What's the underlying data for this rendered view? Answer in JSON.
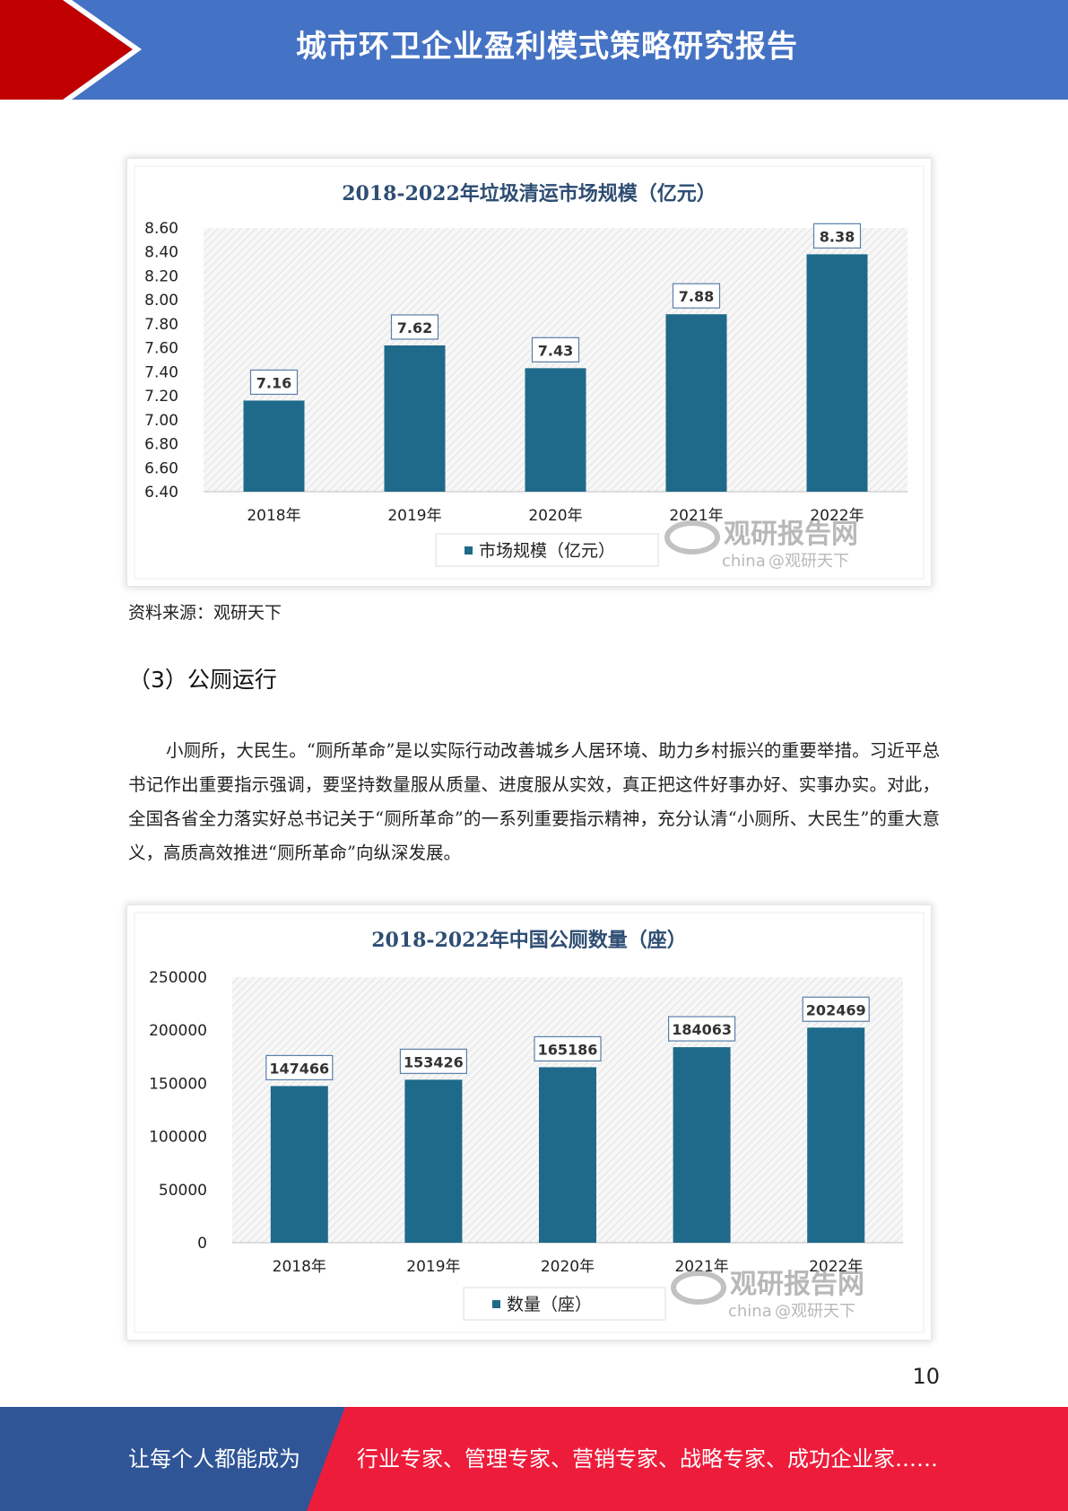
{
  "header": {
    "title": "城市环卫企业盈利模式策略研究报告"
  },
  "chart_data": [
    {
      "type": "bar",
      "title": "2018-2022年垃圾清运市场规模（亿元）",
      "categories": [
        "2018年",
        "2019年",
        "2020年",
        "2021年",
        "2022年"
      ],
      "values": [
        7.16,
        7.62,
        7.43,
        7.88,
        8.38
      ],
      "data_labels": [
        "7.16",
        "7.62",
        "7.43",
        "7.88",
        "8.38"
      ],
      "ylim": [
        6.4,
        8.6
      ],
      "yticks": [
        "6.40",
        "6.60",
        "6.80",
        "7.00",
        "7.20",
        "7.40",
        "7.60",
        "7.80",
        "8.00",
        "8.20",
        "8.40",
        "8.60"
      ],
      "legend": "市场规模（亿元）",
      "legend_position": "bottom",
      "color": "#1f6a8a",
      "watermark": {
        "brand": "观研报告网",
        "sub": "china",
        "handle": "@观研天下"
      }
    },
    {
      "type": "bar",
      "title": "2018-2022年中国公厕数量（座）",
      "categories": [
        "2018年",
        "2019年",
        "2020年",
        "2021年",
        "2022年"
      ],
      "values": [
        147466,
        153426,
        165186,
        184063,
        202469
      ],
      "data_labels": [
        "147466",
        "153426",
        "165186",
        "184063",
        "202469"
      ],
      "ylim": [
        0,
        250000
      ],
      "yticks": [
        "0",
        "50000",
        "100000",
        "150000",
        "200000",
        "250000"
      ],
      "legend": "数量（座）",
      "legend_position": "bottom",
      "color": "#1f6a8a",
      "watermark": {
        "brand": "观研报告网",
        "sub": "china",
        "handle": "@观研天下"
      }
    }
  ],
  "source": "资料来源：观研天下",
  "section": {
    "heading": "（3）公厕运行"
  },
  "paragraph": "小厕所，大民生。“厕所革命”是以实际行动改善城乡人居环境、助力乡村振兴的重要举措。习近平总书记作出重要指示强调，要坚持数量服从质量、进度服从实效，真正把这件好事办好、实事办实。对此，全国各省全力落实好总书记关于“厕所革命”的一系列重要指示精神，充分认清“小厕所、大民生”的重大意义，高质高效推进“厕所革命”向纵深发展。",
  "page_number": "10",
  "footer": {
    "left": "让每个人都能成为",
    "right": "行业专家、管理专家、营销专家、战略专家、成功企业家……"
  },
  "colors": {
    "header_blue": "#4472c4",
    "header_red": "#c00000",
    "footer_blue": "#2f5597",
    "footer_red": "#ee1c3b",
    "bar": "#1f6a8a"
  }
}
